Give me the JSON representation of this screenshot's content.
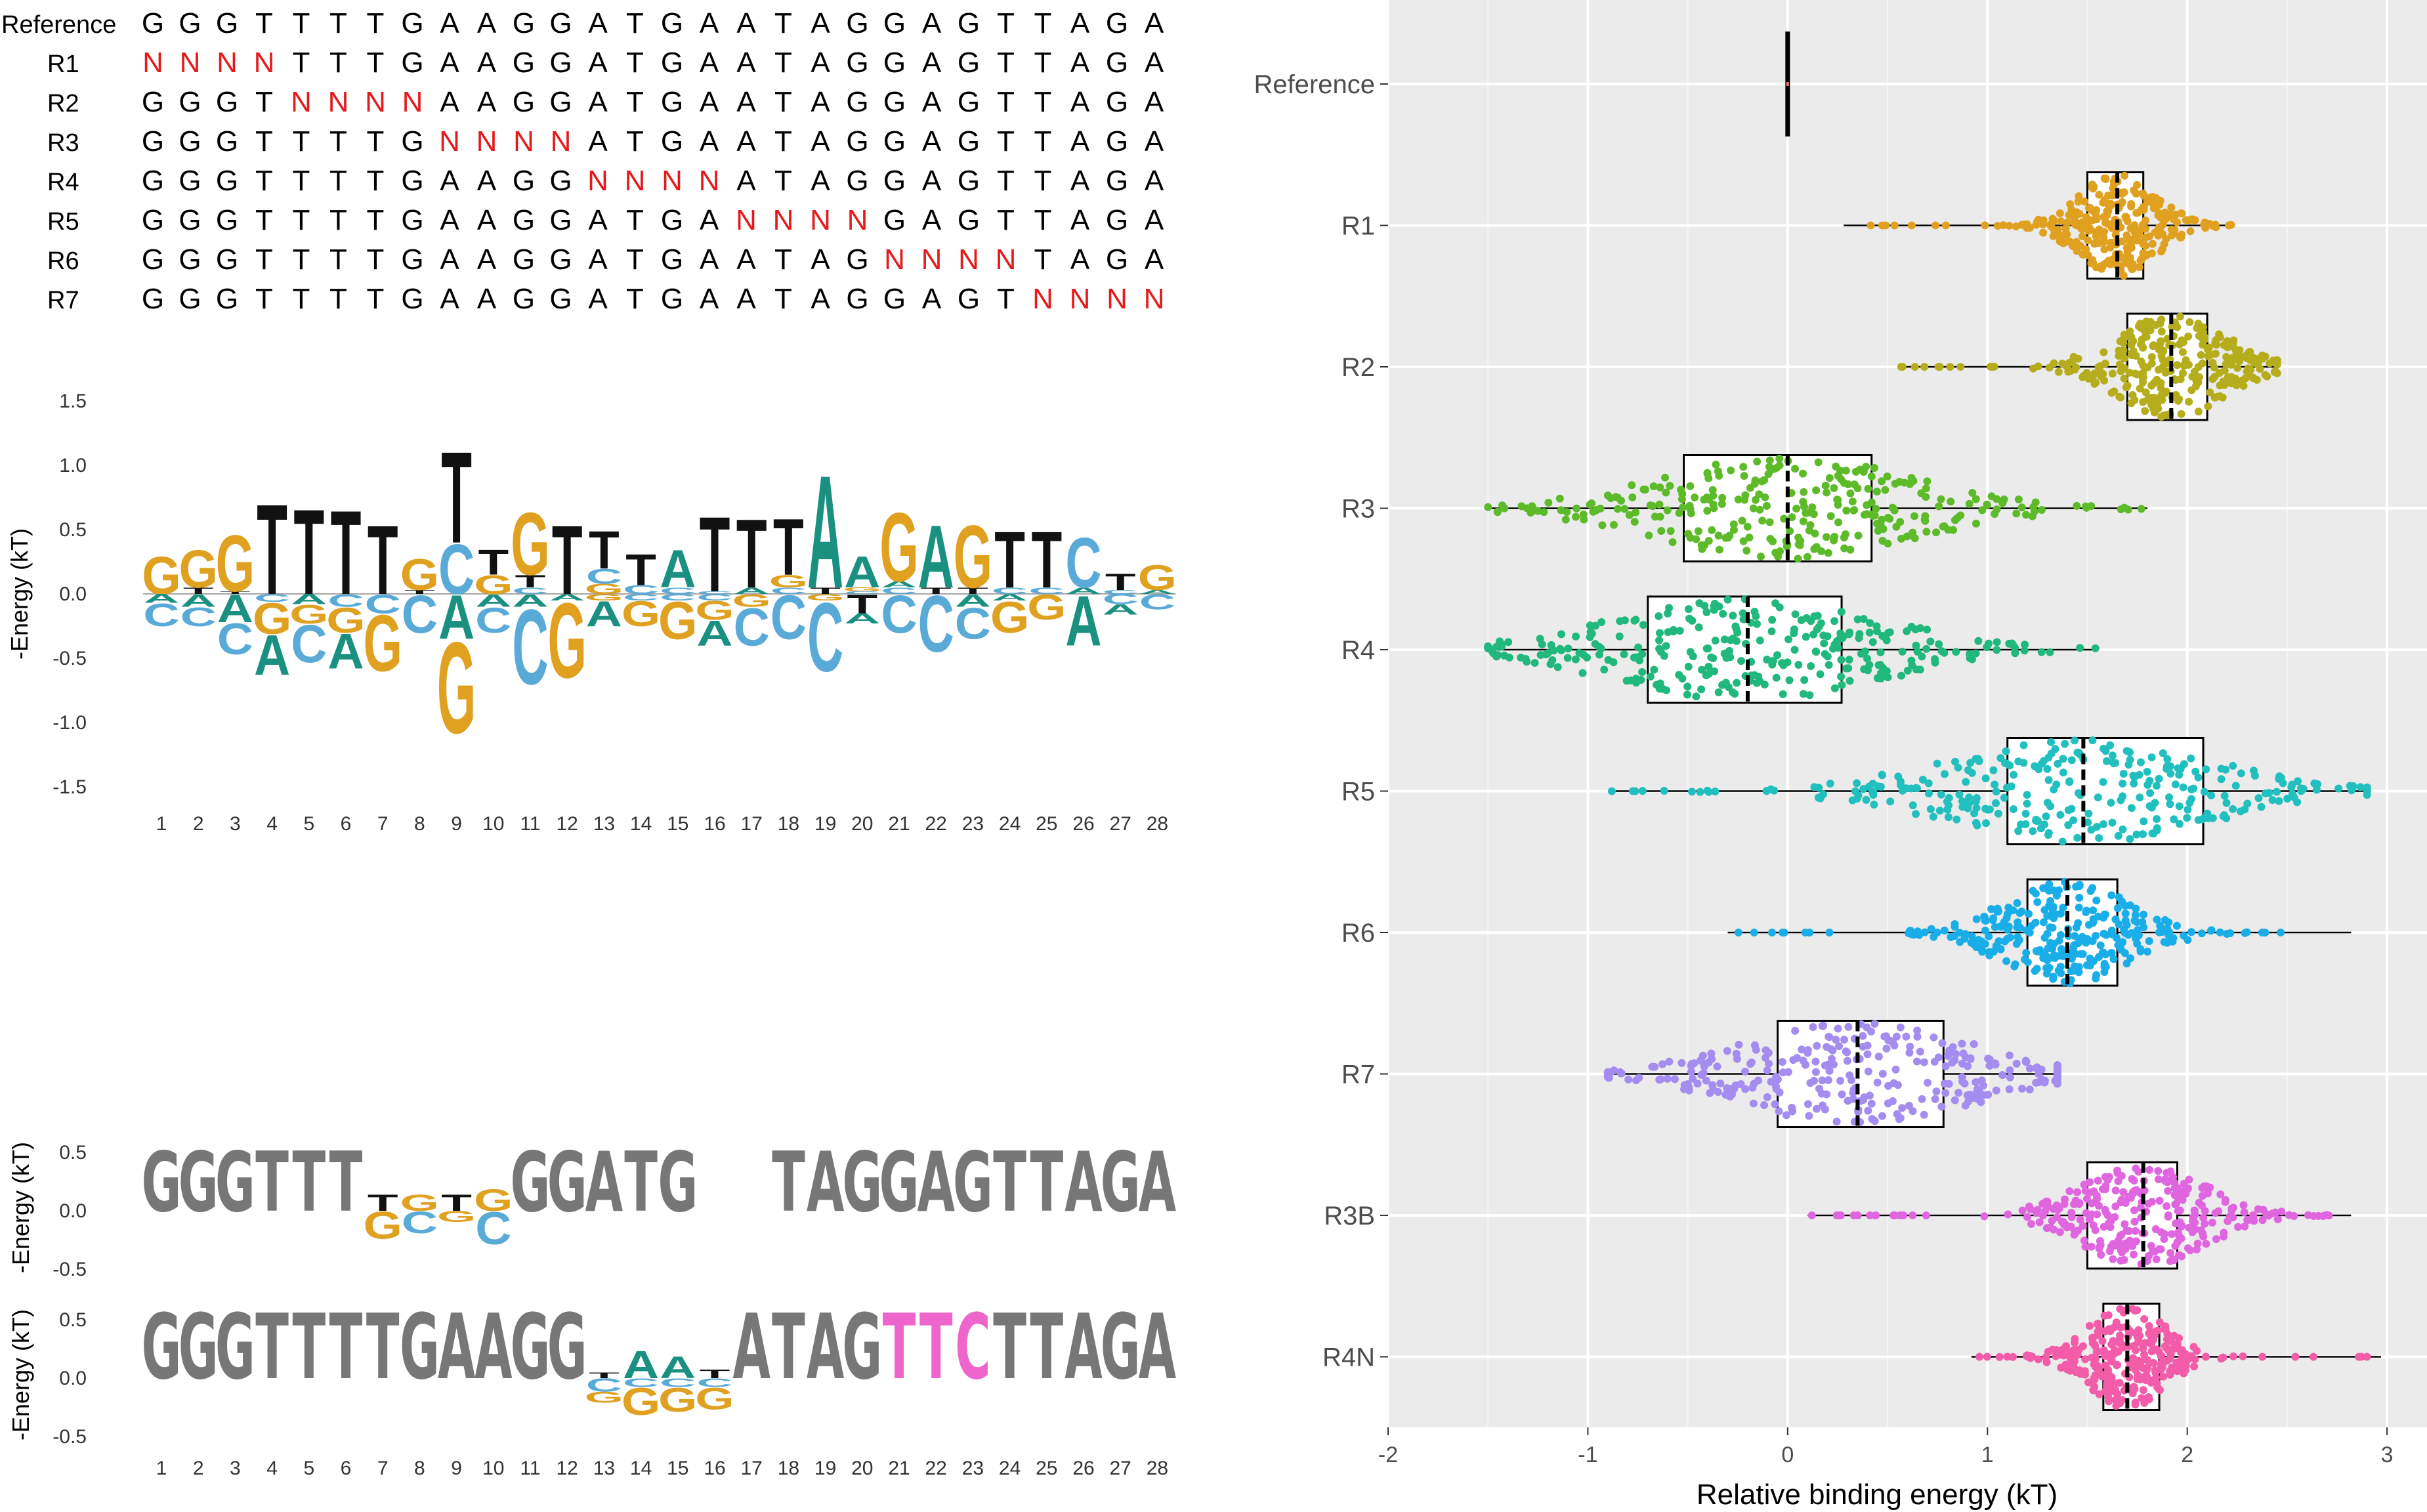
{
  "alignment": {
    "rows": [
      {
        "label": "Reference",
        "seq": "GGGTTTTGAAGGATGAATAGGAGTTAGA",
        "mut_start": -1
      },
      {
        "label": "R1",
        "seq": "NNNNTTTGAAGGATGAATAGGAGTTAGA",
        "mut_start": 0
      },
      {
        "label": "R2",
        "seq": "GGGTNNNNAAGGATGAATAGGAGTTAGA",
        "mut_start": 4
      },
      {
        "label": "R3",
        "seq": "GGGTTTTGNNNNATGAATAGGAGTTAGA",
        "mut_start": 8
      },
      {
        "label": "R4",
        "seq": "GGGTTTTGAAGGNNNNATAGGAGTTAGA",
        "mut_start": 12
      },
      {
        "label": "R5",
        "seq": "GGGTTTTGAAGGATGANNNNGAGTTAGA",
        "mut_start": 16
      },
      {
        "label": "R6",
        "seq": "GGGTTTTGAAGGATGAATAGNNNNTAGA",
        "mut_start": 20
      },
      {
        "label": "R7",
        "seq": "GGGTTTTGAAGGATGAATAGGAGTNNNN",
        "mut_start": 24
      }
    ],
    "mutation_color": "#e41a1c"
  },
  "energy_logo": {
    "ylabel": "-Energy (kT)",
    "yticks": [
      "1.5",
      "1.0",
      "0.5",
      "0.0",
      "-0.5",
      "-1.0",
      "-1.5"
    ],
    "ylim": [
      -1.5,
      1.5
    ],
    "positions": [
      "1",
      "2",
      "3",
      "4",
      "5",
      "6",
      "7",
      "8",
      "9",
      "10",
      "11",
      "12",
      "13",
      "14",
      "15",
      "16",
      "17",
      "18",
      "19",
      "20",
      "21",
      "22",
      "23",
      "24",
      "25",
      "26",
      "27",
      "28"
    ],
    "colors": {
      "A": "#1a9080",
      "C": "#5aaad8",
      "G": "#e0a020",
      "T": "#111111"
    },
    "columns": [
      {
        "pos": [
          [
            "G",
            0.3
          ]
        ],
        "neg": [
          [
            "A",
            0.07
          ],
          [
            "C",
            0.18
          ]
        ]
      },
      {
        "pos": [
          [
            "T",
            0.05
          ],
          [
            "G",
            0.3
          ]
        ],
        "neg": [
          [
            "A",
            0.1
          ],
          [
            "C",
            0.15
          ]
        ]
      },
      {
        "pos": [
          [
            "T",
            0.02
          ],
          [
            "G",
            0.45
          ]
        ],
        "neg": [
          [
            "A",
            0.22
          ],
          [
            "C",
            0.25
          ]
        ]
      },
      {
        "pos": [
          [
            "T",
            0.72
          ]
        ],
        "neg": [
          [
            "C",
            0.06
          ],
          [
            "G",
            0.25
          ],
          [
            "A",
            0.32
          ]
        ]
      },
      {
        "pos": [
          [
            "T",
            0.68
          ]
        ],
        "neg": [
          [
            "A",
            0.08
          ],
          [
            "G",
            0.15
          ],
          [
            "C",
            0.3
          ]
        ]
      },
      {
        "pos": [
          [
            "T",
            0.67
          ]
        ],
        "neg": [
          [
            "C",
            0.1
          ],
          [
            "G",
            0.2
          ],
          [
            "A",
            0.28
          ]
        ]
      },
      {
        "pos": [
          [
            "T",
            0.55
          ]
        ],
        "neg": [
          [
            "C",
            0.15
          ],
          [
            "G",
            0.45
          ]
        ]
      },
      {
        "pos": [
          [
            "T",
            0.03
          ],
          [
            "G",
            0.25
          ]
        ],
        "neg": [
          [
            "C",
            0.3
          ]
        ]
      },
      {
        "pos": [
          [
            "C",
            0.4
          ],
          [
            "T",
            0.73
          ]
        ],
        "neg": [
          [
            "A",
            0.35
          ],
          [
            "G",
            0.73
          ]
        ]
      },
      {
        "pos": [
          [
            "G",
            0.15
          ],
          [
            "T",
            0.2
          ]
        ],
        "neg": [
          [
            "A",
            0.1
          ],
          [
            "C",
            0.2
          ]
        ]
      },
      {
        "pos": [
          [
            "C",
            0.05
          ],
          [
            "T",
            0.1
          ],
          [
            "G",
            0.5
          ]
        ],
        "neg": [
          [
            "A",
            0.1
          ],
          [
            "C",
            0.6
          ]
        ]
      },
      {
        "pos": [
          [
            "T",
            0.55
          ]
        ],
        "neg": [
          [
            "A",
            0.05
          ],
          [
            "G",
            0.6
          ]
        ]
      },
      {
        "pos": [
          [
            "G",
            0.08
          ],
          [
            "C",
            0.12
          ],
          [
            "T",
            0.3
          ]
        ],
        "neg": [
          [
            "G",
            0.05
          ],
          [
            "A",
            0.2
          ]
        ]
      },
      {
        "pos": [
          [
            "C",
            0.07
          ],
          [
            "T",
            0.25
          ]
        ],
        "neg": [
          [
            "C",
            0.05
          ],
          [
            "G",
            0.2
          ]
        ]
      },
      {
        "pos": [
          [
            "C",
            0.05
          ],
          [
            "A",
            0.3
          ]
        ],
        "neg": [
          [
            "C",
            0.05
          ],
          [
            "G",
            0.3
          ]
        ]
      },
      {
        "pos": [
          [
            "C",
            0.02
          ],
          [
            "T",
            0.6
          ]
        ],
        "neg": [
          [
            "C",
            0.05
          ],
          [
            "G",
            0.15
          ],
          [
            "A",
            0.2
          ]
        ]
      },
      {
        "pos": [
          [
            "A",
            0.05
          ],
          [
            "T",
            0.55
          ]
        ],
        "neg": [
          [
            "G",
            0.1
          ],
          [
            "C",
            0.3
          ]
        ]
      },
      {
        "pos": [
          [
            "C",
            0.05
          ],
          [
            "G",
            0.1
          ],
          [
            "T",
            0.45
          ]
        ],
        "neg": [
          [
            "C",
            0.35
          ]
        ]
      },
      {
        "pos": [
          [
            "T",
            0.05
          ],
          [
            "A",
            0.9
          ]
        ],
        "neg": [
          [
            "G",
            0.05
          ],
          [
            "C",
            0.55
          ]
        ]
      },
      {
        "pos": [
          [
            "C",
            0.02
          ],
          [
            "G",
            0.03
          ],
          [
            "A",
            0.25
          ]
        ],
        "neg": [
          [
            "T",
            0.15
          ],
          [
            "A",
            0.08
          ]
        ]
      },
      {
        "pos": [
          [
            "C",
            0.05
          ],
          [
            "A",
            0.05
          ],
          [
            "G",
            0.55
          ]
        ],
        "neg": [
          [
            "C",
            0.3
          ]
        ]
      },
      {
        "pos": [
          [
            "T",
            0.05
          ],
          [
            "A",
            0.5
          ]
        ],
        "neg": [
          [
            "C",
            0.45
          ]
        ]
      },
      {
        "pos": [
          [
            "T",
            0.05
          ],
          [
            "G",
            0.5
          ]
        ],
        "neg": [
          [
            "A",
            0.1
          ],
          [
            "C",
            0.25
          ]
        ]
      },
      {
        "pos": [
          [
            "C",
            0.05
          ],
          [
            "T",
            0.45
          ]
        ],
        "neg": [
          [
            "A",
            0.05
          ],
          [
            "G",
            0.25
          ]
        ]
      },
      {
        "pos": [
          [
            "C",
            0.05
          ],
          [
            "T",
            0.45
          ]
        ],
        "neg": [
          [
            "G",
            0.2
          ]
        ]
      },
      {
        "pos": [
          [
            "A",
            0.05
          ],
          [
            "C",
            0.4
          ]
        ],
        "neg": [
          [
            "A",
            0.4
          ]
        ]
      },
      {
        "pos": [
          [
            "C",
            0.03
          ],
          [
            "T",
            0.13
          ]
        ],
        "neg": [
          [
            "C",
            0.08
          ],
          [
            "A",
            0.08
          ]
        ]
      },
      {
        "pos": [
          [
            "A",
            0.03
          ],
          [
            "G",
            0.2
          ]
        ],
        "neg": [
          [
            "C",
            0.12
          ]
        ]
      }
    ]
  },
  "condensed_logos": {
    "ylabel": "-Energy (kT)",
    "yticks": [
      "0.5",
      "0.0",
      "-0.5"
    ],
    "positions": [
      "1",
      "2",
      "3",
      "4",
      "5",
      "6",
      "7",
      "8",
      "9",
      "10",
      "11",
      "12",
      "13",
      "14",
      "15",
      "16",
      "17",
      "18",
      "19",
      "20",
      "21",
      "22",
      "23",
      "24",
      "25",
      "26",
      "27",
      "28"
    ],
    "gray": "#777777",
    "highlight": "#ee66cc",
    "logo1": [
      {
        "f": "G"
      },
      {
        "f": "G"
      },
      {
        "f": "G"
      },
      {
        "f": "T"
      },
      {
        "f": "T"
      },
      {
        "f": "T"
      },
      {
        "pos": [
          [
            "T",
            0.15
          ]
        ],
        "neg": [
          [
            "G",
            0.25
          ]
        ]
      },
      {
        "pos": [
          [
            "G",
            0.15
          ]
        ],
        "neg": [
          [
            "C",
            0.2
          ]
        ]
      },
      {
        "pos": [
          [
            "T",
            0.15
          ]
        ],
        "neg": [
          [
            "G",
            0.1
          ]
        ]
      },
      {
        "pos": [
          [
            "G",
            0.2
          ]
        ],
        "neg": [
          [
            "C",
            0.3
          ]
        ]
      },
      {
        "f": "G"
      },
      {
        "f": "G"
      },
      {
        "f": "A"
      },
      {
        "f": "T"
      },
      {
        "f": "G"
      },
      {},
      {},
      {
        "f": "T"
      },
      {
        "f": "A"
      },
      {
        "f": "G"
      },
      {
        "f": "G"
      },
      {
        "f": "A"
      },
      {
        "f": "G"
      },
      {
        "f": "T"
      },
      {
        "f": "T"
      },
      {
        "f": "A"
      },
      {
        "f": "G"
      },
      {
        "f": "A"
      }
    ],
    "logo2": [
      {
        "f": "G"
      },
      {
        "f": "G"
      },
      {
        "f": "G"
      },
      {
        "f": "T"
      },
      {
        "f": "T"
      },
      {
        "f": "T"
      },
      {
        "f": "T"
      },
      {
        "f": "G"
      },
      {
        "f": "A"
      },
      {
        "f": "A"
      },
      {
        "f": "G"
      },
      {
        "f": "G"
      },
      {
        "pos": [
          [
            "T",
            0.05
          ]
        ],
        "neg": [
          [
            "C",
            0.12
          ],
          [
            "G",
            0.1
          ]
        ]
      },
      {
        "pos": [
          [
            "A",
            0.25
          ]
        ],
        "neg": [
          [
            "C",
            0.08
          ],
          [
            "G",
            0.25
          ]
        ]
      },
      {
        "pos": [
          [
            "A",
            0.2
          ]
        ],
        "neg": [
          [
            "C",
            0.08
          ],
          [
            "G",
            0.22
          ]
        ]
      },
      {
        "pos": [
          [
            "T",
            0.08
          ]
        ],
        "neg": [
          [
            "C",
            0.08
          ],
          [
            "G",
            0.2
          ]
        ]
      },
      {
        "f": "A"
      },
      {
        "f": "T"
      },
      {
        "f": "A"
      },
      {
        "f": "G"
      },
      {
        "f": "T",
        "h": true
      },
      {
        "f": "T",
        "h": true
      },
      {
        "f": "C",
        "h": true
      },
      {
        "f": "T"
      },
      {
        "f": "T"
      },
      {
        "f": "A"
      },
      {
        "f": "G"
      },
      {
        "f": "A"
      }
    ]
  },
  "chart_data": {
    "type": "box-swarm",
    "xlabel": "Relative binding energy (kT)",
    "xlim": [
      -2,
      3.2
    ],
    "xticks": [
      -2,
      -1,
      0,
      1,
      2,
      3
    ],
    "xtick_labels": [
      "-2",
      "-1",
      "0",
      "1",
      "2",
      "3"
    ],
    "grid": true,
    "categories": [
      "Reference",
      "R1",
      "R2",
      "R3",
      "R4",
      "R5",
      "R6",
      "R7",
      "R3B",
      "R4N"
    ],
    "series": [
      {
        "category": "Reference",
        "color": "#e8746c",
        "min": 0,
        "q1": 0,
        "median": 0,
        "q3": 0,
        "max": 0,
        "range": [
          -0.01,
          0.01
        ]
      },
      {
        "category": "R1",
        "color": "#e0a020",
        "min": 0.28,
        "q1": 1.5,
        "median": 1.65,
        "q3": 1.78,
        "max": 2.22,
        "range": [
          0.28,
          2.22
        ]
      },
      {
        "category": "R2",
        "color": "#b5ad1c",
        "min": 0.55,
        "q1": 1.7,
        "median": 1.92,
        "q3": 2.1,
        "max": 2.45,
        "range": [
          0.55,
          2.45
        ]
      },
      {
        "category": "R3",
        "color": "#5dbb2a",
        "min": -1.5,
        "q1": -0.52,
        "median": 0.0,
        "q3": 0.42,
        "max": 1.8,
        "range": [
          -1.5,
          1.8
        ]
      },
      {
        "category": "R4",
        "color": "#20b87c",
        "min": -1.5,
        "q1": -0.7,
        "median": -0.2,
        "q3": 0.27,
        "max": 1.55,
        "range": [
          -1.5,
          1.55
        ]
      },
      {
        "category": "R5",
        "color": "#22bfbf",
        "min": -0.88,
        "q1": 1.1,
        "median": 1.48,
        "q3": 2.08,
        "max": 2.9,
        "range": [
          -0.88,
          2.9
        ]
      },
      {
        "category": "R6",
        "color": "#1aaee8",
        "min": -0.3,
        "q1": 1.2,
        "median": 1.4,
        "q3": 1.65,
        "max": 2.82,
        "range": [
          -0.3,
          2.82
        ]
      },
      {
        "category": "R7",
        "color": "#a48cf0",
        "min": -0.9,
        "q1": -0.05,
        "median": 0.35,
        "q3": 0.78,
        "max": 1.35,
        "range": [
          -0.9,
          1.35
        ]
      },
      {
        "category": "R3B",
        "color": "#e066e0",
        "min": 0.1,
        "q1": 1.5,
        "median": 1.78,
        "q3": 1.95,
        "max": 2.82,
        "range": [
          0.1,
          2.82
        ]
      },
      {
        "category": "R4N",
        "color": "#f25ca8",
        "min": 0.92,
        "q1": 1.58,
        "median": 1.7,
        "q3": 1.86,
        "max": 2.97,
        "range": [
          0.92,
          2.97
        ]
      }
    ]
  }
}
